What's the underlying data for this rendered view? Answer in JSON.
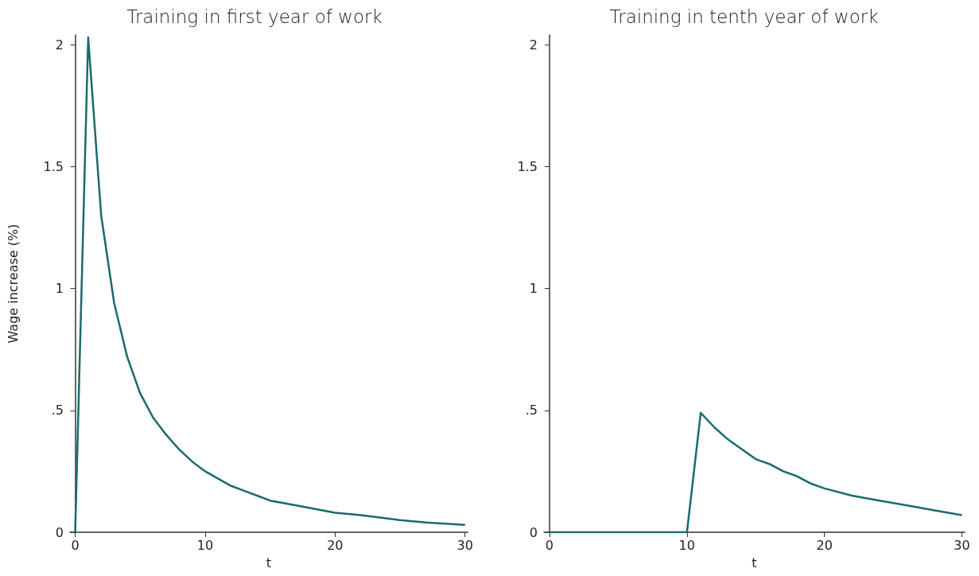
{
  "chart_data": [
    {
      "type": "line",
      "title": "Training in first year of work",
      "xlabel": "t",
      "ylabel": "Wage increase (%)",
      "xlim": [
        -0.4,
        30.2
      ],
      "xticks": [
        0,
        10,
        20,
        30
      ],
      "ylim": [
        0,
        2.04
      ],
      "yticks": [
        0,
        {
          "value": 0.5,
          "label": ".5"
        },
        1,
        1.5,
        2
      ],
      "grid": false,
      "marker": "none",
      "line_style": "solid",
      "series": [
        {
          "color": "#1a6b6b",
          "x": [
            0,
            1,
            2,
            3,
            4,
            5,
            6,
            7,
            8,
            9,
            10,
            11,
            12,
            13,
            14,
            15,
            17,
            20,
            22,
            25,
            27,
            30
          ],
          "values": [
            0,
            2.03,
            1.3,
            0.94,
            0.72,
            0.57,
            0.47,
            0.4,
            0.34,
            0.29,
            0.25,
            0.22,
            0.19,
            0.17,
            0.15,
            0.13,
            0.11,
            0.08,
            0.07,
            0.05,
            0.04,
            0.03
          ]
        }
      ]
    },
    {
      "type": "line",
      "title": "Training in tenth year of work",
      "xlabel": "t",
      "xlim": [
        -0.4,
        30.2
      ],
      "xticks": [
        0,
        10,
        20,
        30
      ],
      "ylim": [
        0,
        2.04
      ],
      "yticks": [
        0,
        {
          "value": 0.5,
          "label": ".5"
        },
        1,
        1.5,
        2
      ],
      "grid": false,
      "marker": "none",
      "line_style": "solid",
      "series": [
        {
          "color": "#1a6b6b",
          "x": [
            0,
            5,
            10,
            11,
            12,
            13,
            14,
            15,
            16,
            17,
            18,
            19,
            20,
            22,
            24,
            25,
            26,
            28,
            30
          ],
          "values": [
            0,
            0,
            0,
            0.49,
            0.43,
            0.38,
            0.34,
            0.3,
            0.28,
            0.25,
            0.23,
            0.2,
            0.18,
            0.15,
            0.13,
            0.12,
            0.11,
            0.09,
            0.07
          ]
        }
      ]
    }
  ]
}
